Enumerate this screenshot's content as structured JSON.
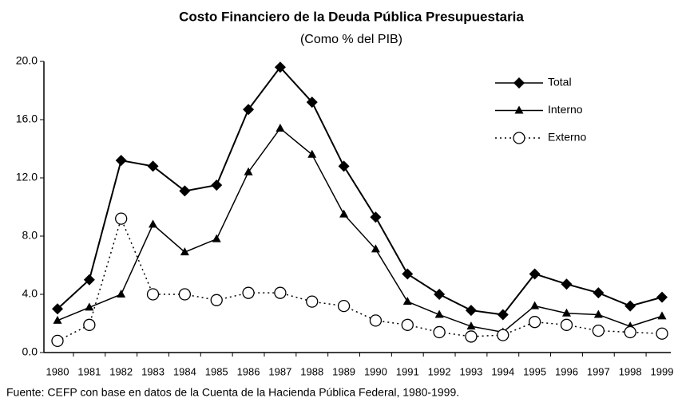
{
  "chart_data": {
    "type": "line",
    "title": "Costo Financiero de la Deuda Pública Presupuestaria",
    "subtitle": "(Como % del PIB)",
    "source": "Fuente: CEFP con base en datos de la Cuenta de la Hacienda Pública Federal, 1980-1999.",
    "categories": [
      "1980",
      "1981",
      "1982",
      "1983",
      "1984",
      "1985",
      "1986",
      "1987",
      "1988",
      "1989",
      "1990",
      "1991",
      "1992",
      "1993",
      "1994",
      "1995",
      "1996",
      "1997",
      "1998",
      "1999"
    ],
    "series": [
      {
        "name": "Total",
        "color": "#000000",
        "dash": "solid",
        "marker": "diamond",
        "values": [
          3.0,
          5.0,
          13.2,
          12.8,
          11.1,
          11.5,
          16.7,
          19.6,
          17.2,
          12.8,
          9.3,
          5.4,
          4.0,
          2.9,
          2.6,
          5.4,
          4.7,
          4.1,
          3.2,
          3.8
        ]
      },
      {
        "name": "Interno",
        "color": "#000000",
        "dash": "solid",
        "marker": "triangle",
        "values": [
          2.2,
          3.1,
          4.0,
          8.8,
          6.9,
          7.8,
          12.4,
          15.4,
          13.6,
          9.5,
          7.1,
          3.5,
          2.6,
          1.8,
          1.4,
          3.2,
          2.7,
          2.6,
          1.8,
          2.5
        ]
      },
      {
        "name": "Externo",
        "color": "#000000",
        "dash": "dotted",
        "marker": "circle",
        "values": [
          0.8,
          1.9,
          9.2,
          4.0,
          4.0,
          3.6,
          4.1,
          4.1,
          3.5,
          3.2,
          2.2,
          1.9,
          1.4,
          1.1,
          1.2,
          2.1,
          1.9,
          1.5,
          1.4,
          1.3
        ]
      }
    ],
    "ylim": [
      0,
      20
    ],
    "yticks": [
      {
        "value": 0,
        "label": "0.0"
      },
      {
        "value": 4,
        "label": "4.0"
      },
      {
        "value": 8,
        "label": "8.0"
      },
      {
        "value": 12,
        "label": "12.0"
      },
      {
        "value": 16,
        "label": "16.0"
      },
      {
        "value": 20,
        "label": "20.0"
      }
    ],
    "legend": "top-right",
    "grid": false
  }
}
